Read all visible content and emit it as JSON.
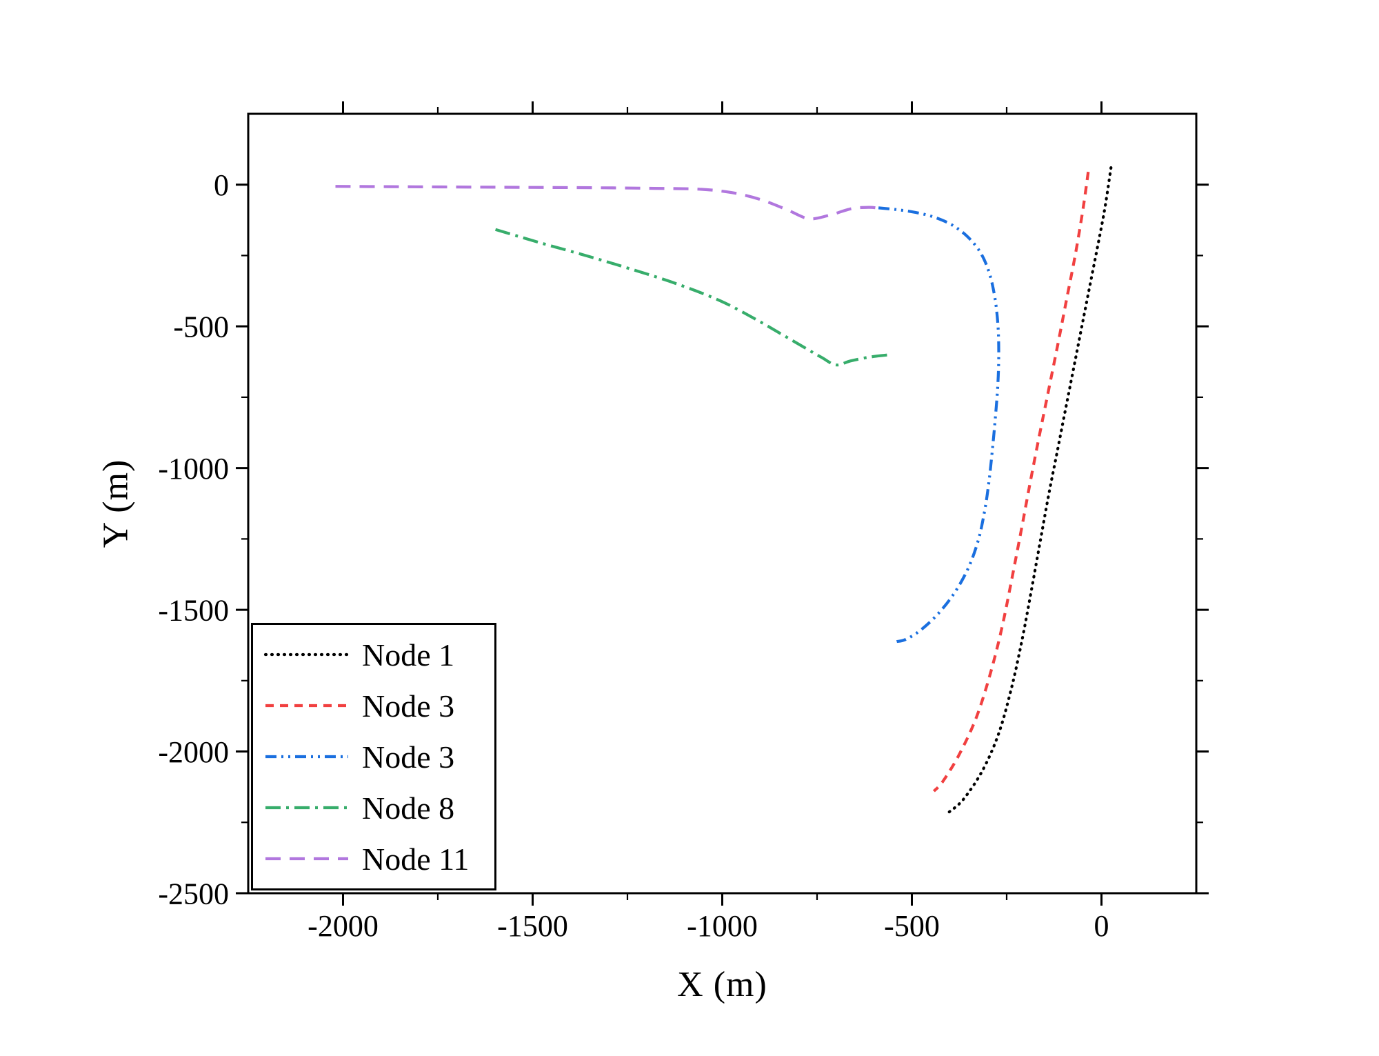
{
  "chart_data": {
    "type": "line",
    "title": "",
    "xlabel": "X (m)",
    "ylabel": "Y (m)",
    "xlim": [
      -2250,
      250
    ],
    "ylim": [
      -2500,
      250
    ],
    "xticks": [
      -2000,
      -1500,
      -1000,
      -500,
      0
    ],
    "yticks": [
      0,
      -500,
      -1000,
      -1500,
      -2000,
      -2500
    ],
    "minor_xticks": [
      -1750,
      -1250,
      -750,
      -250
    ],
    "minor_yticks": [
      -250,
      -750,
      -1250,
      -1750,
      -2250
    ],
    "grid": false,
    "legend_position": "lower-left",
    "frame_color": "#000000",
    "series": [
      {
        "name": "Node 1",
        "color": "#000000",
        "dash": "dot",
        "points": [
          [
            25,
            60
          ],
          [
            8,
            -90
          ],
          [
            -15,
            -250
          ],
          [
            -40,
            -420
          ],
          [
            -65,
            -590
          ],
          [
            -90,
            -760
          ],
          [
            -115,
            -930
          ],
          [
            -140,
            -1100
          ],
          [
            -163,
            -1270
          ],
          [
            -186,
            -1440
          ],
          [
            -210,
            -1610
          ],
          [
            -238,
            -1780
          ],
          [
            -272,
            -1940
          ],
          [
            -315,
            -2070
          ],
          [
            -365,
            -2170
          ],
          [
            -403,
            -2215
          ]
        ]
      },
      {
        "name": "Node 3",
        "color": "#F14040",
        "dash": "short-dash",
        "points": [
          [
            -35,
            45
          ],
          [
            -48,
            -80
          ],
          [
            -68,
            -240
          ],
          [
            -92,
            -405
          ],
          [
            -116,
            -570
          ],
          [
            -141,
            -735
          ],
          [
            -166,
            -900
          ],
          [
            -190,
            -1065
          ],
          [
            -213,
            -1230
          ],
          [
            -237,
            -1395
          ],
          [
            -262,
            -1560
          ],
          [
            -292,
            -1720
          ],
          [
            -330,
            -1880
          ],
          [
            -375,
            -2010
          ],
          [
            -418,
            -2105
          ],
          [
            -442,
            -2140
          ]
        ]
      },
      {
        "name": "Node 3",
        "color": "#1A6FDF",
        "dash": "dash-dot-dot",
        "points": [
          [
            -588,
            -82
          ],
          [
            -540,
            -88
          ],
          [
            -490,
            -98
          ],
          [
            -440,
            -115
          ],
          [
            -393,
            -143
          ],
          [
            -352,
            -185
          ],
          [
            -318,
            -242
          ],
          [
            -295,
            -315
          ],
          [
            -281,
            -400
          ],
          [
            -273,
            -495
          ],
          [
            -271,
            -595
          ],
          [
            -273,
            -700
          ],
          [
            -279,
            -810
          ],
          [
            -287,
            -925
          ],
          [
            -296,
            -1040
          ],
          [
            -308,
            -1150
          ],
          [
            -325,
            -1255
          ],
          [
            -352,
            -1355
          ],
          [
            -390,
            -1445
          ],
          [
            -435,
            -1520
          ],
          [
            -480,
            -1575
          ],
          [
            -517,
            -1605
          ],
          [
            -540,
            -1612
          ]
        ]
      },
      {
        "name": "Node 8",
        "color": "#37AD6B",
        "dash": "dash-dot",
        "points": [
          [
            -1598,
            -158
          ],
          [
            -1480,
            -205
          ],
          [
            -1360,
            -250
          ],
          [
            -1240,
            -298
          ],
          [
            -1120,
            -350
          ],
          [
            -1005,
            -410
          ],
          [
            -905,
            -480
          ],
          [
            -815,
            -550
          ],
          [
            -740,
            -608
          ],
          [
            -700,
            -636
          ],
          [
            -662,
            -622
          ],
          [
            -610,
            -608
          ],
          [
            -558,
            -600
          ]
        ]
      },
      {
        "name": "Node 11",
        "color": "#B177DE",
        "dash": "long-dash",
        "points": [
          [
            -2020,
            -6
          ],
          [
            -1880,
            -7
          ],
          [
            -1740,
            -8
          ],
          [
            -1600,
            -9
          ],
          [
            -1460,
            -10
          ],
          [
            -1320,
            -11
          ],
          [
            -1180,
            -13
          ],
          [
            -1060,
            -16
          ],
          [
            -975,
            -28
          ],
          [
            -900,
            -52
          ],
          [
            -830,
            -88
          ],
          [
            -772,
            -120
          ],
          [
            -718,
            -108
          ],
          [
            -660,
            -85
          ],
          [
            -612,
            -80
          ],
          [
            -585,
            -84
          ]
        ]
      }
    ]
  }
}
